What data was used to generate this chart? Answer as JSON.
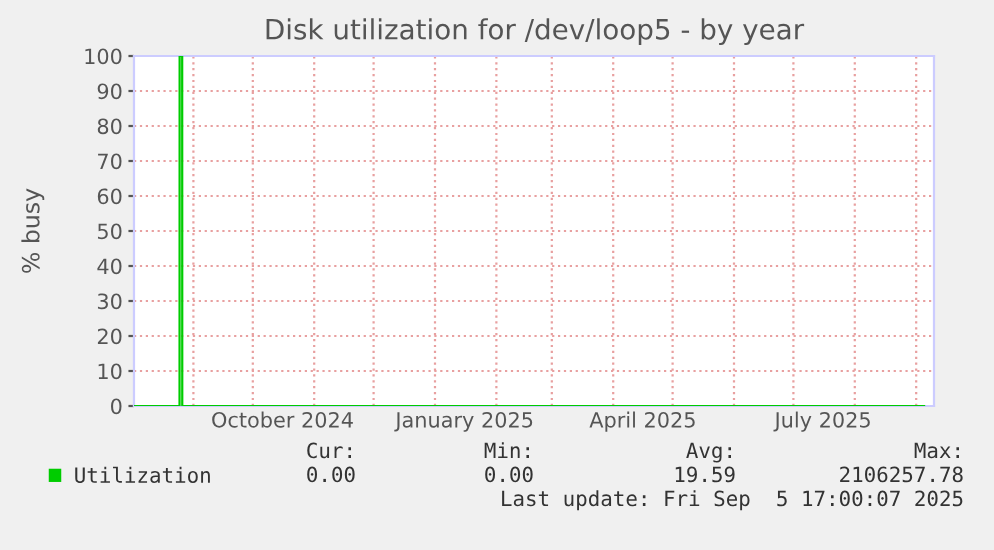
{
  "chart_data": {
    "type": "line",
    "title": "Disk utilization for /dev/loop5 - by year",
    "ylabel": "% busy",
    "x": [
      "2024-08-02",
      "2024-08-25T00:00",
      "2024-08-25T01:00",
      "2024-08-26T08:00",
      "2024-08-26T09:00",
      "2025-09-05"
    ],
    "series": [
      {
        "name": "Utilization",
        "color": "#00cc00",
        "values": [
          0,
          0,
          100,
          100,
          0,
          0
        ]
      }
    ],
    "xlim": [
      "2024-08-02",
      "2025-09-10"
    ],
    "xticks": [
      {
        "value": "2024-09-01",
        "label": null
      },
      {
        "value": "2024-10-16",
        "label": "October 2024"
      },
      {
        "value": "2025-01-16",
        "label": "January 2025"
      },
      {
        "value": "2025-04-16",
        "label": "April 2025"
      },
      {
        "value": "2025-07-16",
        "label": "July 2025"
      }
    ],
    "ylim": [
      0,
      100
    ],
    "yticks": [
      0,
      10,
      20,
      30,
      40,
      50,
      60,
      70,
      80,
      90,
      100
    ],
    "grid": true,
    "legend": "bottom left",
    "line_style": "solid",
    "marker": "none",
    "annotations": [
      "Cur:",
      "Min:",
      "Avg:",
      "Max:",
      "0.00",
      "0.00",
      "19.59",
      "2106257.78",
      "Last update: Fri Sep  5 17:00:07 2025"
    ]
  }
}
